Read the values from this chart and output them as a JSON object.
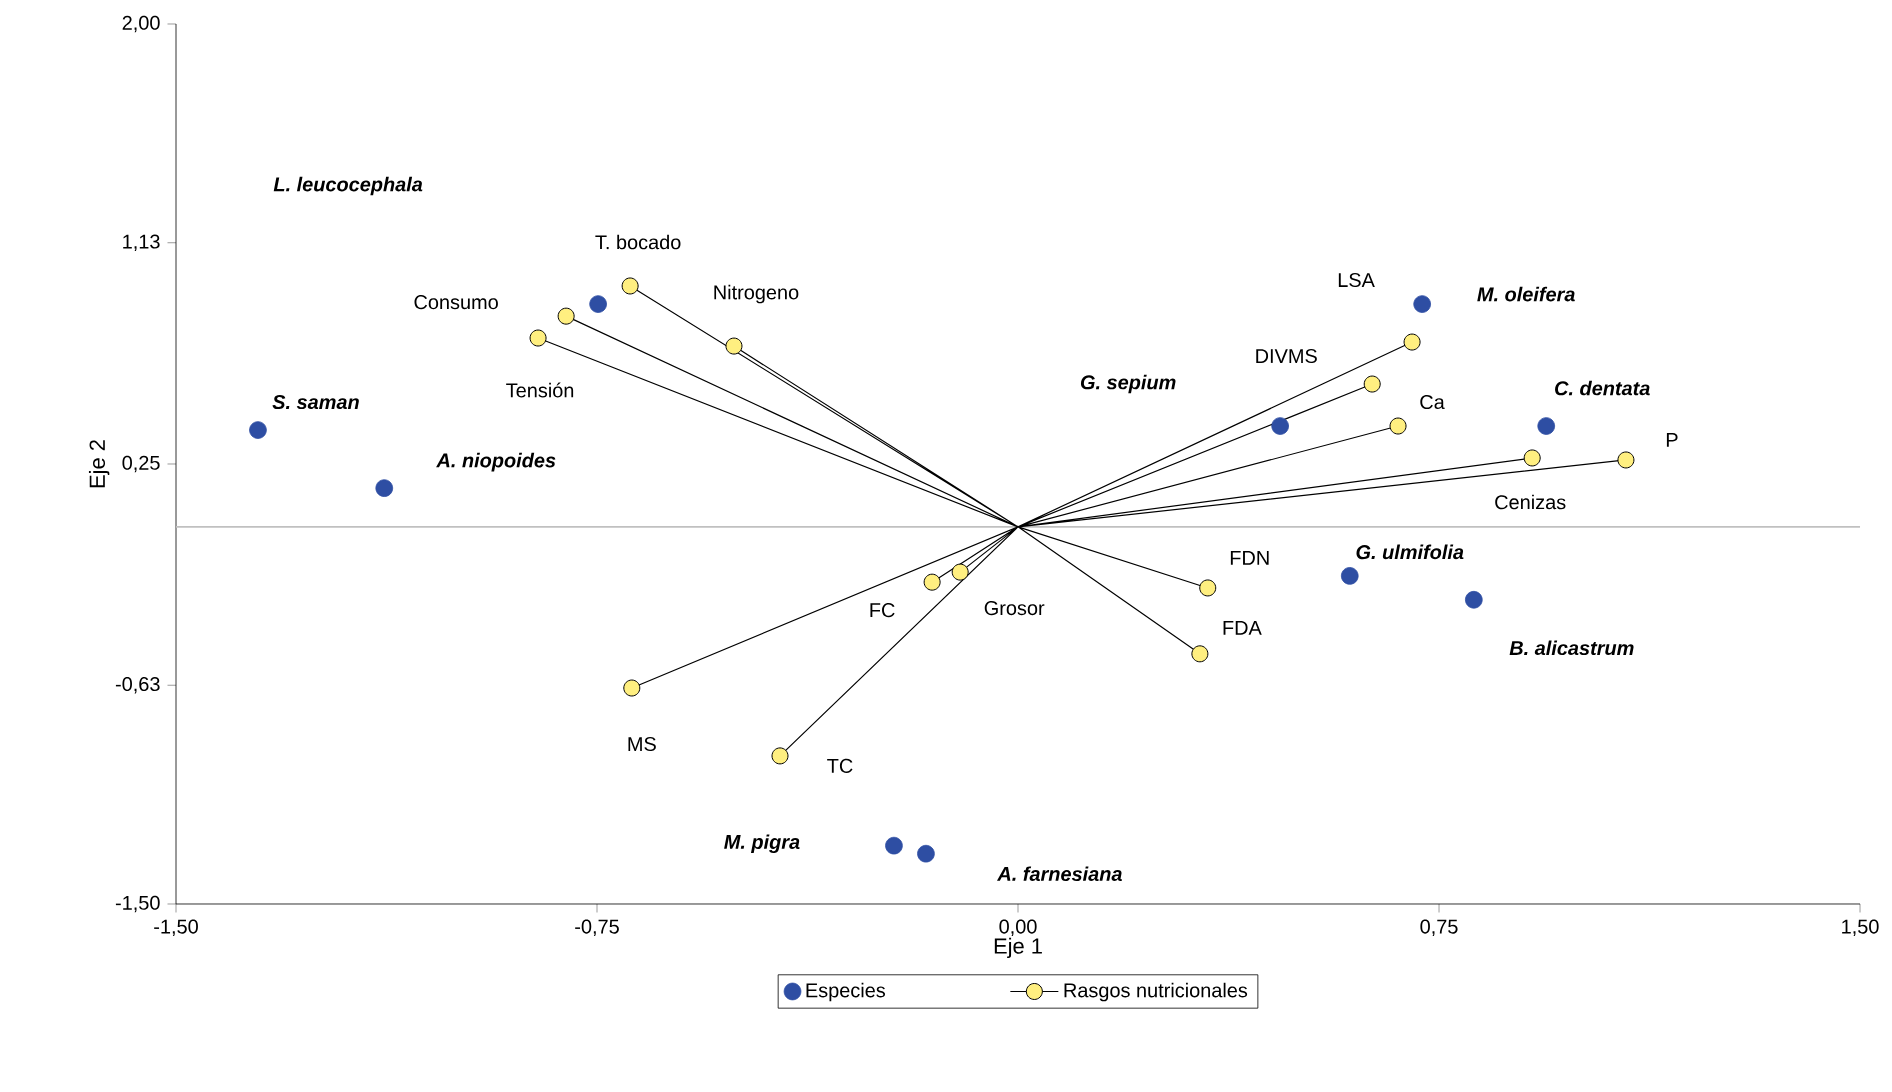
{
  "chart_data": {
    "type": "scatter",
    "xlabel": "Eje 1",
    "ylabel": "Eje 2",
    "xlim": [
      -1.5,
      1.5
    ],
    "ylim": [
      -1.5,
      2.0
    ],
    "xticks": [
      {
        "value": -1.5,
        "label": "-1,50"
      },
      {
        "value": -0.75,
        "label": "-0,75"
      },
      {
        "value": 0,
        "label": "0,00"
      },
      {
        "value": 0.75,
        "label": "0,75"
      },
      {
        "value": 1.5,
        "label": "1,50"
      }
    ],
    "yticks": [
      {
        "value": -1.5,
        "label": "-1,50"
      },
      {
        "value": -0.63,
        "label": "-0,63"
      },
      {
        "value": 0.25,
        "label": "0,25"
      },
      {
        "value": 1.13,
        "label": "1,13"
      },
      {
        "value": 2.0,
        "label": "2,00"
      }
    ],
    "marker": "circle",
    "legend": "bottom",
    "grid": false,
    "ref_lines": [
      {
        "axis": "y",
        "value": 0,
        "color": "#c0c0c0"
      }
    ],
    "series": [
      {
        "name": "Especies",
        "color": "#2e4ea3",
        "x": [
          -1.354,
          -1.129,
          -0.748,
          0.72,
          0.467,
          0.941,
          0.591,
          0.812,
          -0.221,
          -0.164
        ],
        "values": [
          0.385,
          0.154,
          0.886,
          0.886,
          0.401,
          0.401,
          -0.195,
          -0.29,
          -1.268,
          -1.3
        ]
      },
      {
        "type": "line",
        "marker": "none",
        "color": "#000000",
        "x": [
          0,
          -0.691,
          0,
          -0.805,
          0,
          -0.855,
          0,
          -0.506,
          0,
          0.702,
          0,
          0.631,
          0,
          0.677,
          0,
          0.916,
          0,
          1.083,
          0,
          0.338,
          0,
          0.324,
          0,
          -0.153,
          0,
          -0.103,
          0,
          -0.688,
          0,
          -0.424
        ],
        "values": [
          0,
          0.958,
          0,
          0.838,
          0,
          0.751,
          0,
          0.719,
          0,
          0.735,
          0,
          0.568,
          0,
          0.401,
          0,
          0.274,
          0,
          0.266,
          0,
          -0.243,
          0,
          -0.505,
          0,
          -0.22,
          0,
          -0.18,
          0,
          -0.641,
          0,
          -0.911
        ]
      },
      {
        "name": "Rasgos nutricionales",
        "color": "#ffef80",
        "x": [
          -0.691,
          -0.805,
          -0.855,
          -0.506,
          0.702,
          0.631,
          0.677,
          0.916,
          1.083,
          0.338,
          0.324,
          -0.153,
          -0.103,
          -0.688,
          -0.424
        ],
        "values": [
          0.958,
          0.838,
          0.751,
          0.719,
          0.735,
          0.568,
          0.401,
          0.274,
          0.266,
          -0.243,
          -0.505,
          -0.22,
          -0.18,
          -0.641,
          -0.911
        ]
      }
    ],
    "annotations": [
      "S. saman",
      "A. niopoides",
      "L. leucocephala",
      "M. oleifera",
      "G. sepium",
      "C. dentata",
      "G. ulmifolia",
      "B. alicastrum",
      "M. pigra",
      "A. farnesiana",
      "T. bocado",
      "Consumo",
      "Tensión",
      "Nitrogeno",
      "LSA",
      "DIVMS",
      "Ca",
      "Cenizas",
      "P",
      "FDN",
      "FDA",
      "FC",
      "Grosor",
      "MS",
      "TC"
    ]
  }
}
